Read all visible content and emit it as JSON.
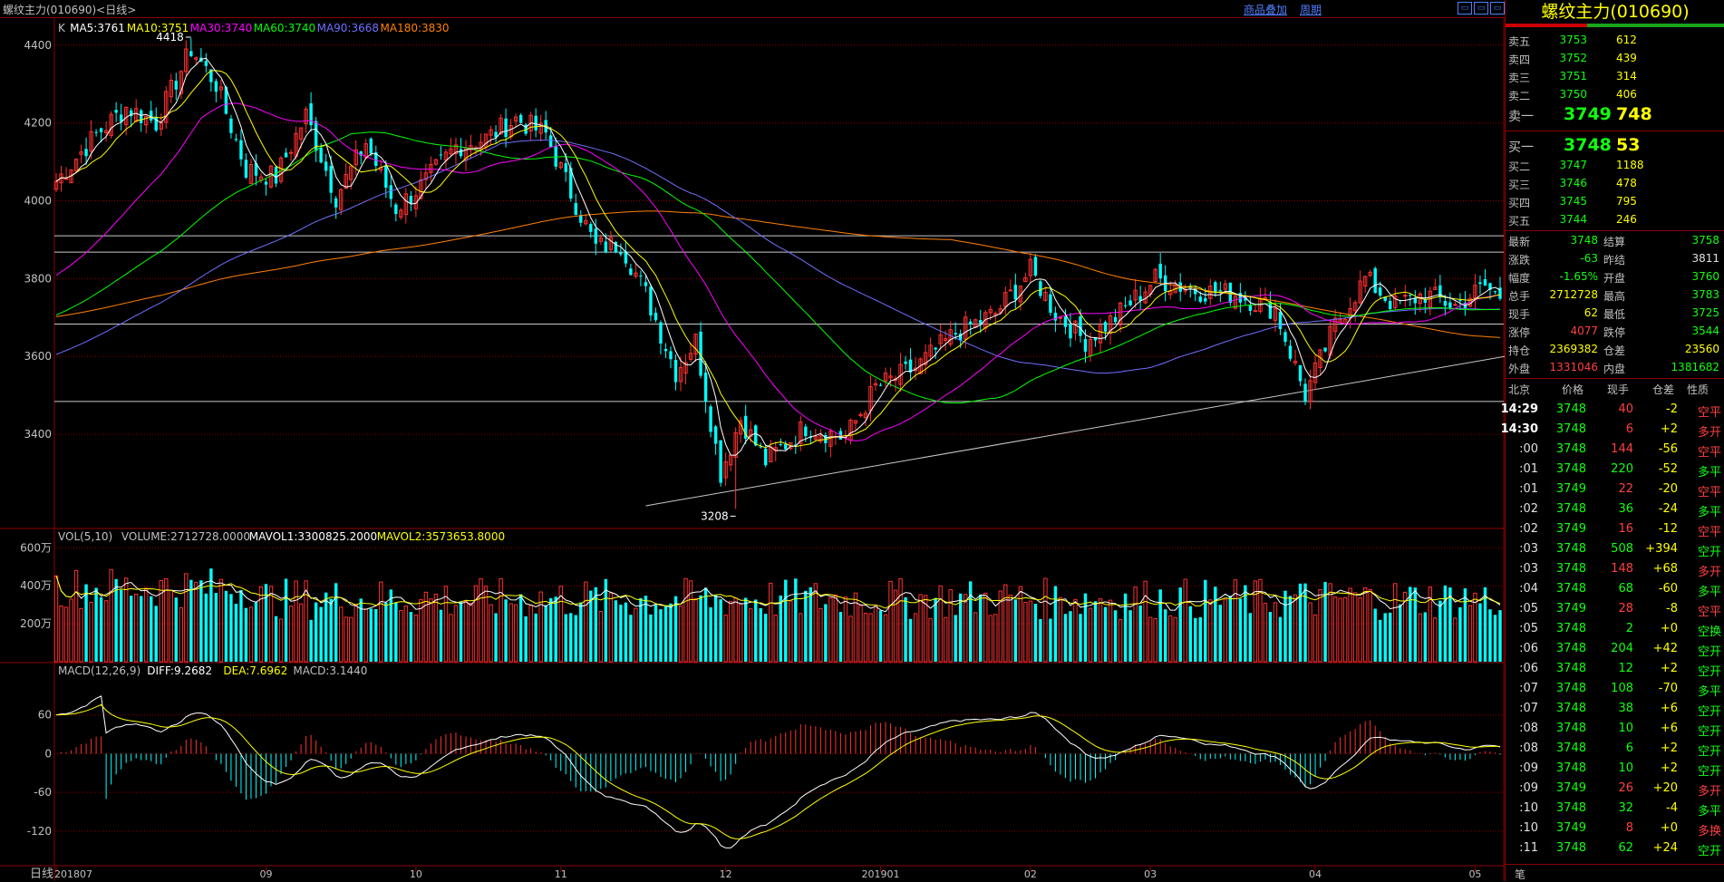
{
  "header": {
    "title": "螺纹主力(010690)<日线>",
    "overlay_link": "商品叠加",
    "period_link": "周期",
    "window_buttons": [
      "▭",
      "▭",
      "▭"
    ]
  },
  "colors": {
    "up": "#ff3030",
    "down": "#00ffff",
    "grid": "#8b0000",
    "ma5": "#ffffff",
    "ma10": "#ffff00",
    "ma30": "#ff00ff",
    "ma60": "#00ff00",
    "ma90": "#7070ff",
    "ma180": "#ff8000"
  },
  "legend_main": [
    {
      "text": "K",
      "color": "#c0c0c0"
    },
    {
      "text": "MA5:3761",
      "color": "#ffffff"
    },
    {
      "text": "MA10:3751",
      "color": "#ffff00"
    },
    {
      "text": "MA30:3740",
      "color": "#ff00ff"
    },
    {
      "text": "MA60:3740",
      "color": "#00ff00"
    },
    {
      "text": "MA90:3668",
      "color": "#7070ff"
    },
    {
      "text": "MA180:3830",
      "color": "#ff8000"
    }
  ],
  "legend_vol": [
    {
      "text": "VOL(5,10)",
      "color": "#c0c0c0"
    },
    {
      "text": "VOLUME:2712728.0000",
      "color": "#c0c0c0"
    },
    {
      "text": "MAVOL1:3300825.2000",
      "color": "#ffffff"
    },
    {
      "text": "MAVOL2:3573653.8000",
      "color": "#ffff00"
    }
  ],
  "legend_macd": [
    {
      "text": "MACD(12,26,9)",
      "color": "#c0c0c0"
    },
    {
      "text": "DIFF:9.2682",
      "color": "#ffffff"
    },
    {
      "text": "DEA:7.6962",
      "color": "#ffff00"
    },
    {
      "text": "MACD:3.1440",
      "color": "#c0c0c0"
    }
  ],
  "period_label": "日线",
  "chart_data": [
    {
      "type": "candlestick",
      "name": "price",
      "y_ticks": [
        3400,
        3600,
        3800,
        4000,
        4200,
        4400
      ],
      "ylim": [
        3160,
        4460
      ],
      "x_ticks": [
        "201807",
        "09",
        "10",
        "11",
        "12",
        "201901",
        "02",
        "03",
        "04",
        "05"
      ],
      "x_tick_index": [
        0,
        42,
        72,
        101,
        134,
        165,
        195,
        219,
        252,
        284
      ],
      "bar_count": 290,
      "annotations": [
        {
          "text": "4418",
          "value": 4418,
          "index": 27
        },
        {
          "text": "3208",
          "value": 3208,
          "index": 136
        }
      ],
      "horizontal_lines": [
        3910,
        3868,
        3683,
        3484
      ],
      "trendline": {
        "from": {
          "index": 118,
          "value": 3216
        },
        "to": {
          "index": 290,
          "value": 3600
        }
      },
      "ohlc_anchors": [
        {
          "i": 0,
          "c": 4050
        },
        {
          "i": 8,
          "c": 4170
        },
        {
          "i": 14,
          "c": 4240
        },
        {
          "i": 20,
          "c": 4200
        },
        {
          "i": 27,
          "c": 4390
        },
        {
          "i": 32,
          "c": 4300
        },
        {
          "i": 38,
          "c": 4080
        },
        {
          "i": 44,
          "c": 4060
        },
        {
          "i": 50,
          "c": 4220
        },
        {
          "i": 56,
          "c": 4010
        },
        {
          "i": 62,
          "c": 4150
        },
        {
          "i": 68,
          "c": 3980
        },
        {
          "i": 74,
          "c": 4050
        },
        {
          "i": 80,
          "c": 4140
        },
        {
          "i": 86,
          "c": 4160
        },
        {
          "i": 92,
          "c": 4210
        },
        {
          "i": 98,
          "c": 4170
        },
        {
          "i": 103,
          "c": 4020
        },
        {
          "i": 108,
          "c": 3880
        },
        {
          "i": 113,
          "c": 3890
        },
        {
          "i": 118,
          "c": 3760
        },
        {
          "i": 124,
          "c": 3560
        },
        {
          "i": 128,
          "c": 3640
        },
        {
          "i": 133,
          "c": 3300
        },
        {
          "i": 137,
          "c": 3440
        },
        {
          "i": 142,
          "c": 3330
        },
        {
          "i": 150,
          "c": 3420
        },
        {
          "i": 158,
          "c": 3390
        },
        {
          "i": 164,
          "c": 3520
        },
        {
          "i": 172,
          "c": 3570
        },
        {
          "i": 180,
          "c": 3660
        },
        {
          "i": 188,
          "c": 3710
        },
        {
          "i": 195,
          "c": 3820
        },
        {
          "i": 200,
          "c": 3710
        },
        {
          "i": 206,
          "c": 3640
        },
        {
          "i": 212,
          "c": 3700
        },
        {
          "i": 220,
          "c": 3800
        },
        {
          "i": 228,
          "c": 3770
        },
        {
          "i": 236,
          "c": 3760
        },
        {
          "i": 244,
          "c": 3720
        },
        {
          "i": 250,
          "c": 3500
        },
        {
          "i": 256,
          "c": 3680
        },
        {
          "i": 262,
          "c": 3800
        },
        {
          "i": 268,
          "c": 3730
        },
        {
          "i": 274,
          "c": 3760
        },
        {
          "i": 280,
          "c": 3730
        },
        {
          "i": 286,
          "c": 3780
        },
        {
          "i": 289,
          "c": 3748
        }
      ]
    },
    {
      "type": "bar",
      "name": "volume",
      "y_ticks": [
        2000000,
        4000000,
        6000000
      ],
      "y_tick_labels": [
        "200万",
        "400万",
        "600万"
      ],
      "ylim": [
        0,
        6300000
      ]
    },
    {
      "type": "bar",
      "name": "macd",
      "y_ticks": [
        -120,
        -60,
        0,
        60
      ],
      "y_tick_labels": [
        "-120",
        "-60",
        "0",
        "60"
      ],
      "ylim": [
        -175,
        120
      ]
    }
  ],
  "quote": {
    "title": "螺纹主力(010690)",
    "asks": [
      {
        "label": "卖五",
        "price": "3753",
        "vol": "612"
      },
      {
        "label": "卖四",
        "price": "3752",
        "vol": "439"
      },
      {
        "label": "卖三",
        "price": "3751",
        "vol": "314"
      },
      {
        "label": "卖二",
        "price": "3750",
        "vol": "406"
      }
    ],
    "ask1": {
      "label": "卖一",
      "price": "3749",
      "vol": "748"
    },
    "bid1": {
      "label": "买一",
      "price": "3748",
      "vol": "53"
    },
    "bids": [
      {
        "label": "买二",
        "price": "3747",
        "vol": "1188"
      },
      {
        "label": "买三",
        "price": "3746",
        "vol": "478"
      },
      {
        "label": "买四",
        "price": "3745",
        "vol": "795"
      },
      {
        "label": "买五",
        "price": "3744",
        "vol": "246"
      }
    ],
    "stats": [
      {
        "l1": "最新",
        "v1": "3748",
        "c1": "dn",
        "l2": "结算",
        "v2": "3758",
        "c2": "dn"
      },
      {
        "l1": "涨跌",
        "v1": "-63",
        "c1": "dn",
        "l2": "昨结",
        "v2": "3811",
        "c2": "wh"
      },
      {
        "l1": "幅度",
        "v1": "-1.65%",
        "c1": "dn",
        "l2": "开盘",
        "v2": "3760",
        "c2": "dn"
      },
      {
        "l1": "总手",
        "v1": "2712728",
        "c1": "ye",
        "l2": "最高",
        "v2": "3783",
        "c2": "dn"
      },
      {
        "l1": "现手",
        "v1": "62",
        "c1": "ye",
        "l2": "最低",
        "v2": "3725",
        "c2": "dn"
      },
      {
        "l1": "涨停",
        "v1": "4077",
        "c1": "up",
        "l2": "跌停",
        "v2": "3544",
        "c2": "dn"
      },
      {
        "l1": "持仓",
        "v1": "2369382",
        "c1": "ye",
        "l2": "仓差",
        "v2": "23560",
        "c2": "ye"
      },
      {
        "l1": "外盘",
        "v1": "1331046",
        "c1": "up",
        "l2": "内盘",
        "v2": "1381682",
        "c2": "dn"
      }
    ],
    "tick_headers": [
      "北京",
      "价格",
      "现手",
      "仓差",
      "性质"
    ],
    "ticks": [
      {
        "t": "14:29",
        "p": "3748",
        "pc": "dn",
        "v": "40",
        "vc": "up",
        "d": "-2",
        "dc": "ye",
        "k": "空平",
        "kc": "up",
        "bold": true
      },
      {
        "t": "14:30",
        "p": "3748",
        "pc": "dn",
        "v": "6",
        "vc": "up",
        "d": "+2",
        "dc": "ye",
        "k": "多开",
        "kc": "up",
        "bold": true
      },
      {
        "t": ":00",
        "p": "3748",
        "pc": "dn",
        "v": "144",
        "vc": "up",
        "d": "-56",
        "dc": "ye",
        "k": "空平",
        "kc": "up"
      },
      {
        "t": ":01",
        "p": "3748",
        "pc": "dn",
        "v": "220",
        "vc": "dn",
        "d": "-52",
        "dc": "ye",
        "k": "多平",
        "kc": "dn"
      },
      {
        "t": ":01",
        "p": "3749",
        "pc": "dn",
        "v": "22",
        "vc": "up",
        "d": "-20",
        "dc": "ye",
        "k": "空平",
        "kc": "up"
      },
      {
        "t": ":02",
        "p": "3748",
        "pc": "dn",
        "v": "36",
        "vc": "dn",
        "d": "-24",
        "dc": "ye",
        "k": "多平",
        "kc": "dn"
      },
      {
        "t": ":02",
        "p": "3749",
        "pc": "dn",
        "v": "16",
        "vc": "up",
        "d": "-12",
        "dc": "ye",
        "k": "空平",
        "kc": "up"
      },
      {
        "t": ":03",
        "p": "3748",
        "pc": "dn",
        "v": "508",
        "vc": "dn",
        "d": "+394",
        "dc": "ye",
        "k": "空开",
        "kc": "dn"
      },
      {
        "t": ":03",
        "p": "3748",
        "pc": "dn",
        "v": "148",
        "vc": "up",
        "d": "+68",
        "dc": "ye",
        "k": "多开",
        "kc": "up"
      },
      {
        "t": ":04",
        "p": "3748",
        "pc": "dn",
        "v": "68",
        "vc": "dn",
        "d": "-60",
        "dc": "ye",
        "k": "多平",
        "kc": "dn"
      },
      {
        "t": ":05",
        "p": "3749",
        "pc": "dn",
        "v": "28",
        "vc": "up",
        "d": "-8",
        "dc": "ye",
        "k": "空平",
        "kc": "up"
      },
      {
        "t": ":05",
        "p": "3748",
        "pc": "dn",
        "v": "2",
        "vc": "dn",
        "d": "+0",
        "dc": "ye",
        "k": "空换",
        "kc": "dn"
      },
      {
        "t": ":06",
        "p": "3748",
        "pc": "dn",
        "v": "204",
        "vc": "dn",
        "d": "+42",
        "dc": "ye",
        "k": "空开",
        "kc": "dn"
      },
      {
        "t": ":06",
        "p": "3748",
        "pc": "dn",
        "v": "12",
        "vc": "dn",
        "d": "+2",
        "dc": "ye",
        "k": "空开",
        "kc": "dn"
      },
      {
        "t": ":07",
        "p": "3748",
        "pc": "dn",
        "v": "108",
        "vc": "dn",
        "d": "-70",
        "dc": "ye",
        "k": "多平",
        "kc": "dn"
      },
      {
        "t": ":07",
        "p": "3748",
        "pc": "dn",
        "v": "38",
        "vc": "dn",
        "d": "+6",
        "dc": "ye",
        "k": "空开",
        "kc": "dn"
      },
      {
        "t": ":08",
        "p": "3748",
        "pc": "dn",
        "v": "10",
        "vc": "dn",
        "d": "+6",
        "dc": "ye",
        "k": "空开",
        "kc": "dn"
      },
      {
        "t": ":08",
        "p": "3748",
        "pc": "dn",
        "v": "6",
        "vc": "dn",
        "d": "+2",
        "dc": "ye",
        "k": "空开",
        "kc": "dn"
      },
      {
        "t": ":09",
        "p": "3748",
        "pc": "dn",
        "v": "10",
        "vc": "dn",
        "d": "+2",
        "dc": "ye",
        "k": "空开",
        "kc": "dn"
      },
      {
        "t": ":09",
        "p": "3749",
        "pc": "dn",
        "v": "26",
        "vc": "up",
        "d": "+20",
        "dc": "ye",
        "k": "多开",
        "kc": "up"
      },
      {
        "t": ":10",
        "p": "3748",
        "pc": "dn",
        "v": "32",
        "vc": "dn",
        "d": "-4",
        "dc": "ye",
        "k": "多平",
        "kc": "dn"
      },
      {
        "t": ":10",
        "p": "3749",
        "pc": "dn",
        "v": "8",
        "vc": "up",
        "d": "+0",
        "dc": "ye",
        "k": "多换",
        "kc": "up"
      },
      {
        "t": ":11",
        "p": "3748",
        "pc": "dn",
        "v": "62",
        "vc": "dn",
        "d": "+24",
        "dc": "ye",
        "k": "空开",
        "kc": "dn"
      }
    ],
    "footer_tab": "笔"
  }
}
